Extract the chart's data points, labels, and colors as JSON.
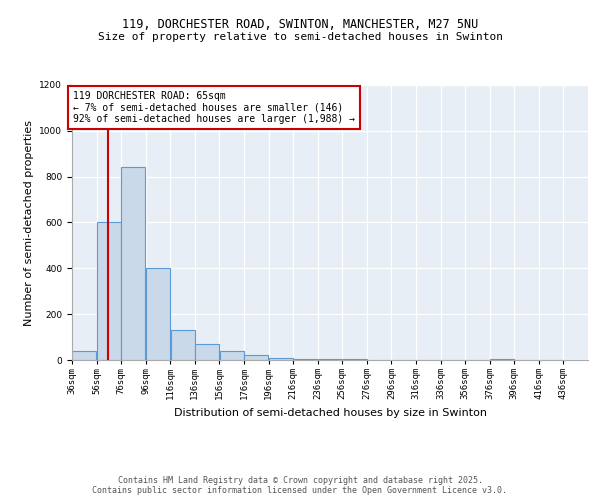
{
  "title_line1": "119, DORCHESTER ROAD, SWINTON, MANCHESTER, M27 5NU",
  "title_line2": "Size of property relative to semi-detached houses in Swinton",
  "xlabel": "Distribution of semi-detached houses by size in Swinton",
  "ylabel": "Number of semi-detached properties",
  "bin_starts": [
    36,
    56,
    76,
    96,
    116,
    136,
    156,
    176,
    196,
    216,
    236,
    256,
    276,
    296,
    316,
    336,
    356,
    376,
    396,
    416
  ],
  "bin_width": 20,
  "bar_heights": [
    40,
    600,
    840,
    400,
    130,
    70,
    40,
    20,
    10,
    5,
    5,
    3,
    2,
    1,
    1,
    1,
    0,
    5,
    0,
    0
  ],
  "bar_facecolor": "#c9d9ea",
  "bar_edgecolor": "#5b9bd5",
  "property_size": 65,
  "red_line_color": "#cc0000",
  "annotation_line1": "119 DORCHESTER ROAD: 65sqm",
  "annotation_line2": "← 7% of semi-detached houses are smaller (146)",
  "annotation_line3": "92% of semi-detached houses are larger (1,988) →",
  "annotation_box_facecolor": "white",
  "annotation_box_edgecolor": "#cc0000",
  "ylim": [
    0,
    1200
  ],
  "yticks": [
    0,
    200,
    400,
    600,
    800,
    1000,
    1200
  ],
  "xlim_left": 36,
  "xlim_right": 456,
  "background_color": "#e8eef5",
  "footer_text": "Contains HM Land Registry data © Crown copyright and database right 2025.\nContains public sector information licensed under the Open Government Licence v3.0.",
  "title_fontsize": 8.5,
  "title2_fontsize": 8,
  "axis_label_fontsize": 8,
  "tick_fontsize": 6.5,
  "annotation_fontsize": 7,
  "footer_fontsize": 6
}
